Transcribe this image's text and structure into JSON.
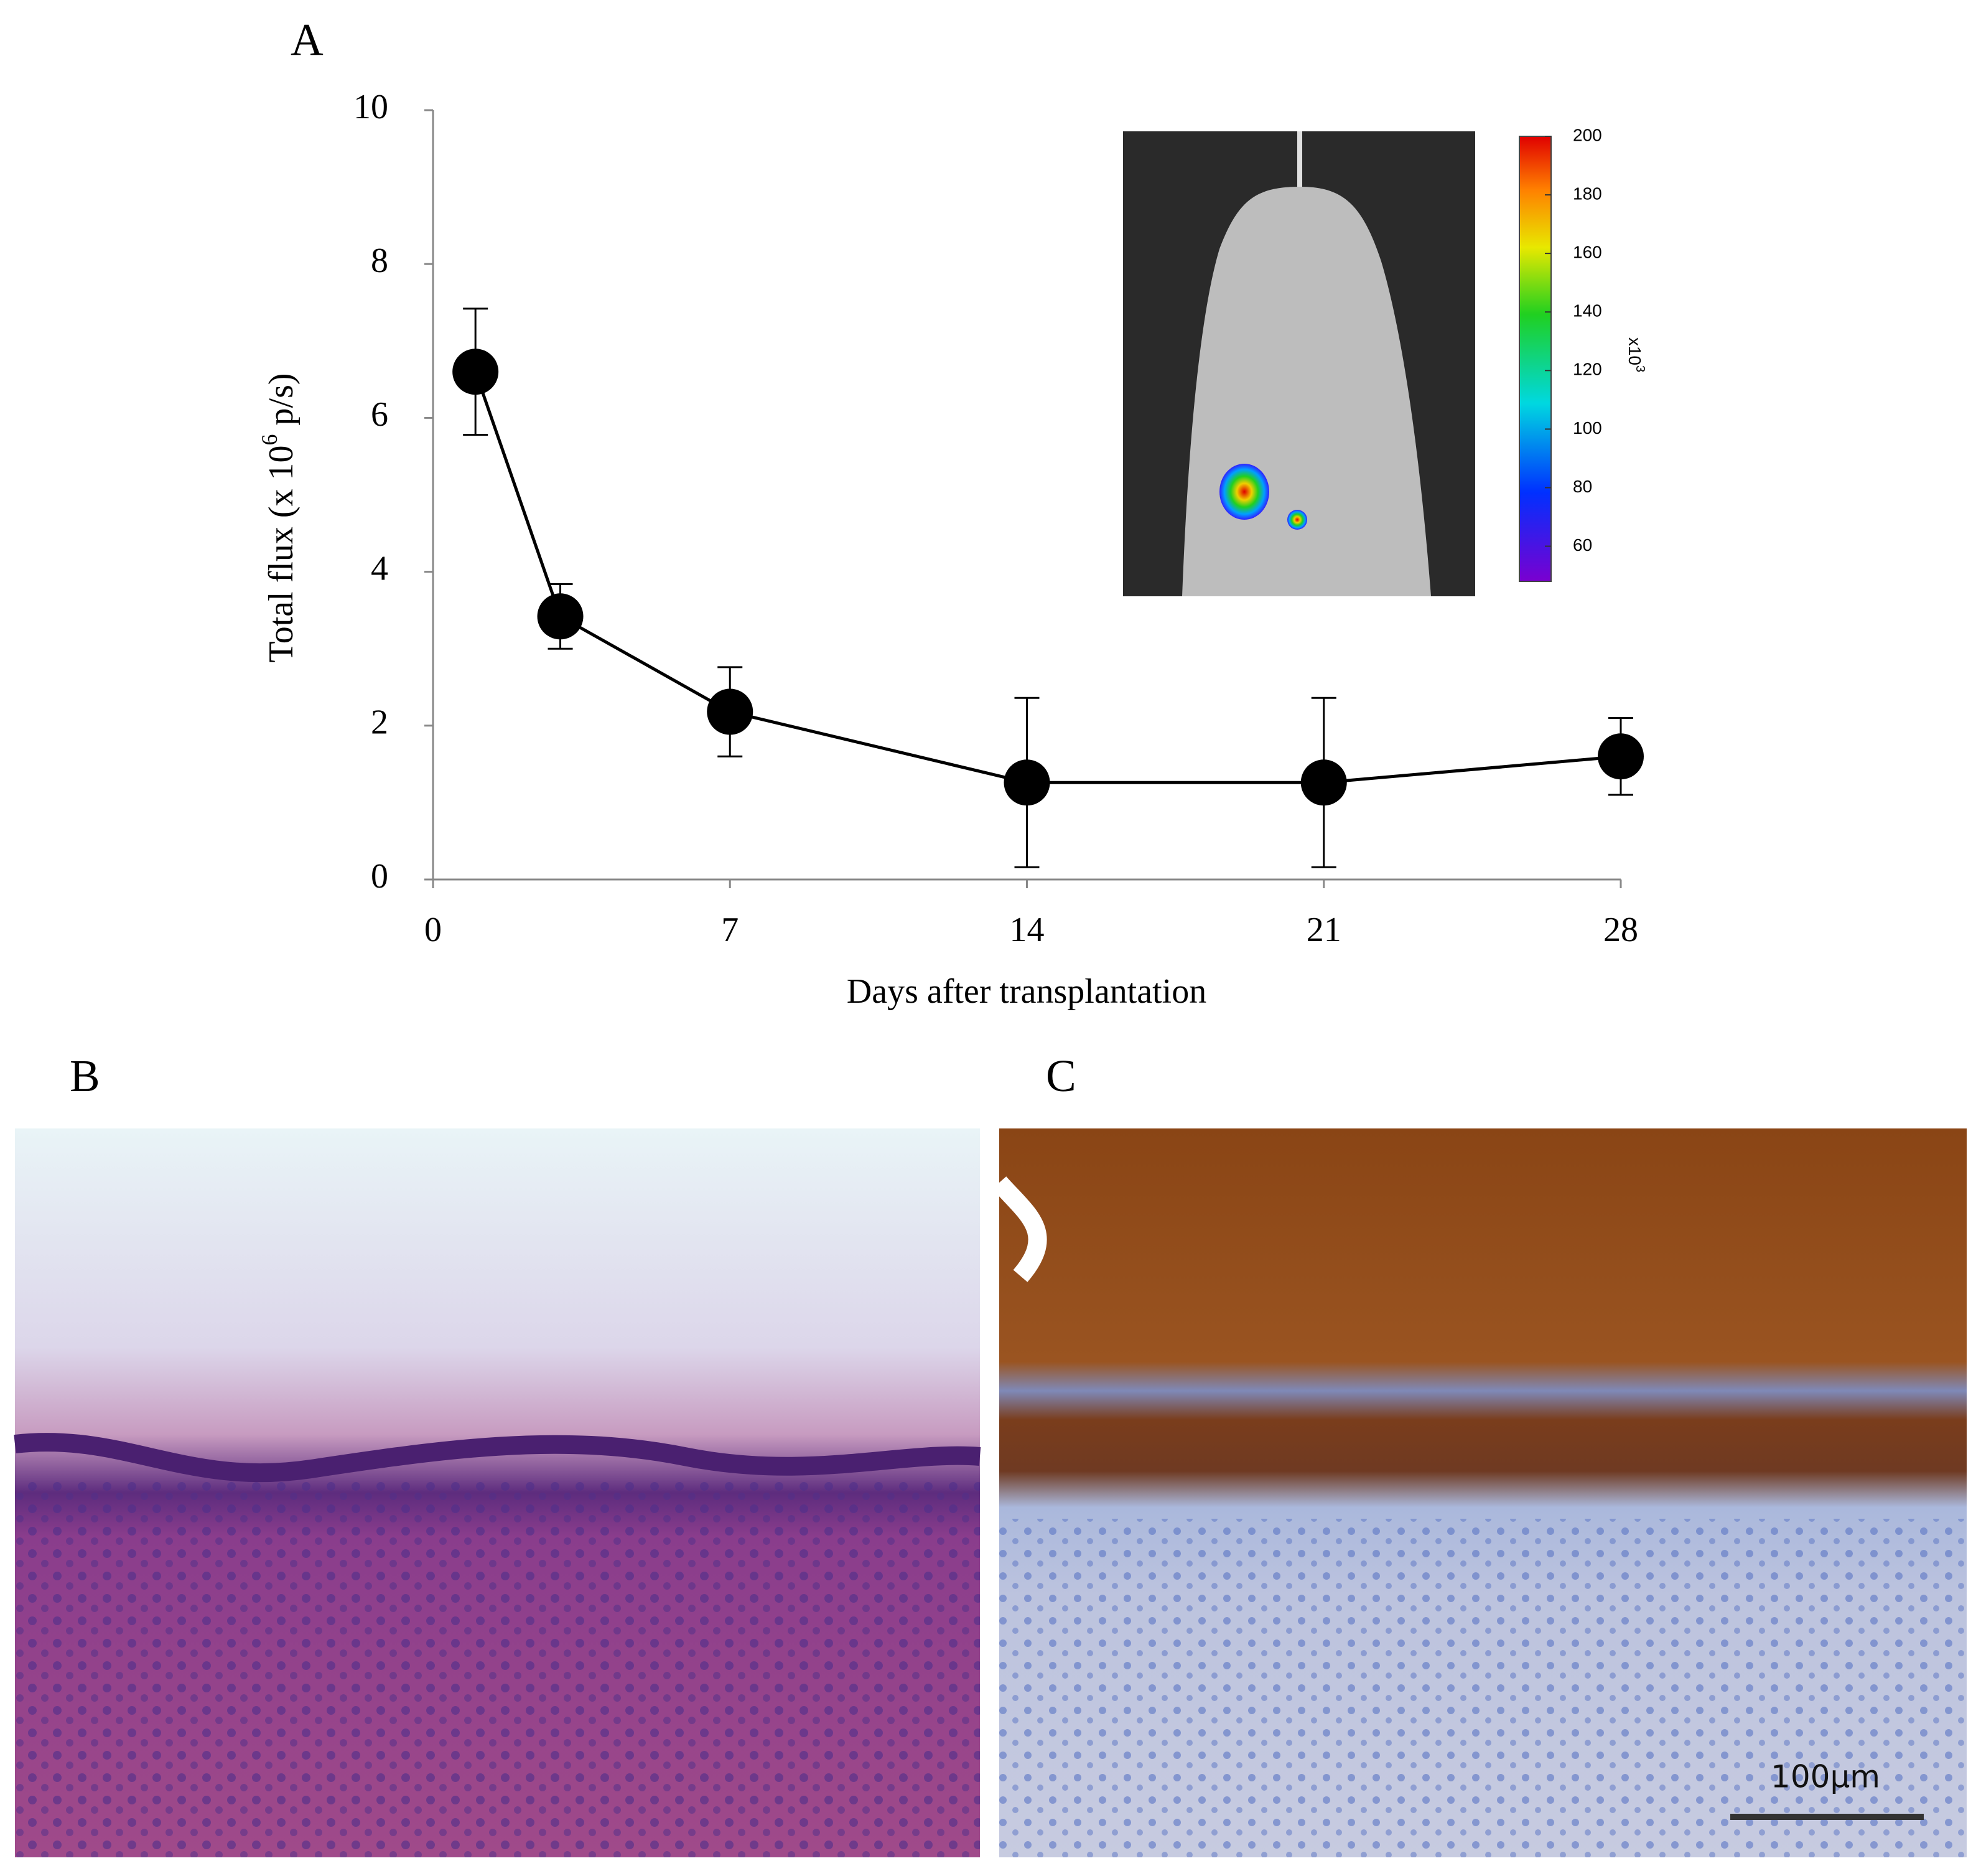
{
  "panels": {
    "a": "A",
    "b": "B",
    "c": "C"
  },
  "chart_data": {
    "type": "line",
    "x_label": "Days after transplantation",
    "y_label": {
      "start": "Total flux (x 10",
      "sup": "6",
      "end": " p/s)"
    },
    "x": [
      1,
      3,
      7,
      14,
      21,
      28
    ],
    "series": [
      {
        "color": "#000000",
        "values": [
          6.6,
          3.42,
          2.18,
          1.26,
          1.26,
          1.6
        ],
        "errors": [
          0.82,
          0.42,
          0.58,
          1.1,
          1.1,
          0.5
        ]
      }
    ],
    "xlim": [
      0,
      28
    ],
    "xticks": [
      0,
      7,
      14,
      21,
      28
    ],
    "ylim": [
      0,
      10
    ],
    "yticks": [
      0,
      2,
      4,
      6,
      8,
      10
    ]
  },
  "inset": {
    "colorbar_lim": [
      48,
      200
    ],
    "colorbar_ticks": [
      60,
      80,
      100,
      120,
      140,
      160,
      180,
      200
    ],
    "colorbar_unit": "x10",
    "colorbar_unit_exp": "3"
  },
  "scale_bar": "100μm"
}
